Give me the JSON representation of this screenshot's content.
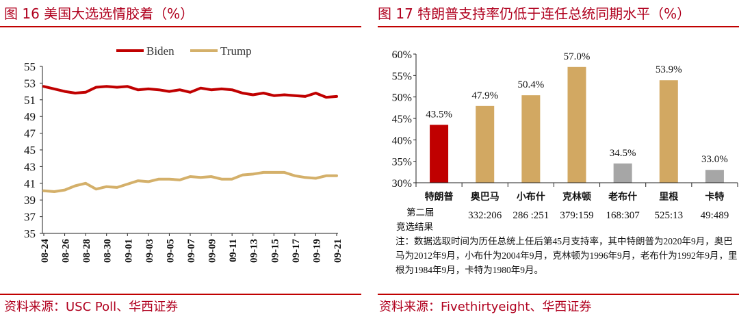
{
  "left": {
    "title": "图 16 美国大选选情胶着（%）",
    "source": "资料来源：USC Poll、华西证券"
  },
  "right": {
    "title": "图 17 特朗普支持率仍低于连任总统同期水平（%）",
    "source": "资料来源：Fivethirtyeight、华西证券",
    "row_label_1": "第二届",
    "row_label_2": "竞选结果",
    "note": "注：数据选取时间为历任总统上任后第45月支持率，其中特朗普为2020年9月，奥巴马为2012年9月，小布什为2004年9月，克林顿为1996年9月，老布什为1992年9月，里根为1984年9月，卡特为1980年9月。"
  },
  "colors": {
    "accent": "#c00000",
    "biden": "#c00000",
    "trump": "#d4b06a",
    "trump_bar": "#c00000",
    "re_elected_bar": "#d2a862",
    "lost_bar": "#a6a6a6"
  },
  "chart_data": [
    {
      "type": "line",
      "title": "美国大选选情胶着（%）",
      "x": [
        "08-24",
        "08-25",
        "08-26",
        "08-27",
        "08-28",
        "08-29",
        "08-30",
        "08-31",
        "09-01",
        "09-02",
        "09-03",
        "09-04",
        "09-05",
        "09-06",
        "09-07",
        "09-08",
        "09-09",
        "09-10",
        "09-11",
        "09-12",
        "09-13",
        "09-14",
        "09-15",
        "09-16",
        "09-17",
        "09-18",
        "09-19",
        "09-20",
        "09-21"
      ],
      "x_ticks": [
        "08-24",
        "08-26",
        "08-28",
        "08-30",
        "09-01",
        "09-03",
        "09-05",
        "09-07",
        "09-09",
        "09-11",
        "09-13",
        "09-15",
        "09-17",
        "09-19",
        "09-21"
      ],
      "series": [
        {
          "name": "Biden",
          "values": [
            52.6,
            52.3,
            52.0,
            51.8,
            51.9,
            52.5,
            52.6,
            52.5,
            52.6,
            52.2,
            52.3,
            52.2,
            52.0,
            52.2,
            51.9,
            52.4,
            52.2,
            52.3,
            52.2,
            51.8,
            51.6,
            51.8,
            51.5,
            51.6,
            51.5,
            51.4,
            51.8,
            51.3,
            51.4
          ]
        },
        {
          "name": "Trump",
          "values": [
            40.1,
            40.0,
            40.2,
            40.7,
            41.0,
            40.3,
            40.6,
            40.5,
            40.9,
            41.3,
            41.2,
            41.5,
            41.5,
            41.4,
            41.8,
            41.7,
            41.8,
            41.5,
            41.5,
            42.0,
            42.1,
            42.3,
            42.3,
            42.3,
            41.9,
            41.7,
            41.6,
            41.9,
            41.9
          ]
        }
      ],
      "y_ticks": [
        35,
        37,
        39,
        41,
        43,
        45,
        47,
        49,
        51,
        53,
        55
      ],
      "ylim": [
        35,
        55
      ],
      "legend": "top-center",
      "xlabel": "",
      "ylabel": ""
    },
    {
      "type": "bar",
      "title": "特朗普支持率仍低于连任总统同期水平（%）",
      "categories": [
        "特朗普",
        "奥巴马",
        "小布什",
        "克林顿",
        "老布什",
        "里根",
        "卡特"
      ],
      "values": [
        43.5,
        47.9,
        50.4,
        57.0,
        34.5,
        53.9,
        33.0
      ],
      "value_labels": [
        "43.5%",
        "47.9%",
        "50.4%",
        "57.0%",
        "34.5%",
        "53.9%",
        "33.0%"
      ],
      "groups": [
        "trump",
        "re_elected",
        "re_elected",
        "re_elected",
        "lost",
        "re_elected",
        "lost"
      ],
      "second_term_results": [
        "",
        "332:206",
        "286 :251",
        "379:159",
        "168:307",
        "525:13",
        "49:489"
      ],
      "y_ticks": [
        "30%",
        "35%",
        "40%",
        "45%",
        "50%",
        "55%",
        "60%"
      ],
      "ylim": [
        30,
        60
      ],
      "xlabel": "",
      "ylabel": ""
    }
  ]
}
